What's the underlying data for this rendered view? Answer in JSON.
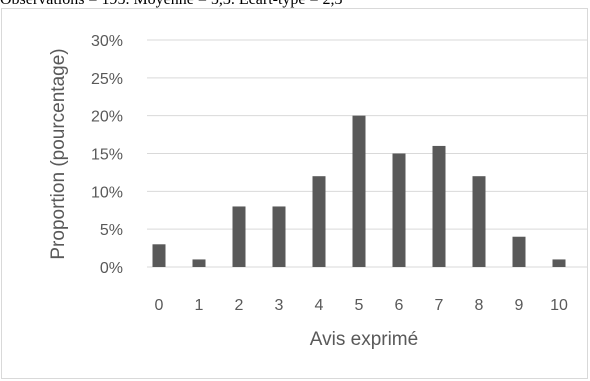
{
  "caption": "Observations = 195. Moyenne = 5,3. Ecart-type = 2,3",
  "colors": {
    "bar": "#595959",
    "grid": "#d9d9d9",
    "text": "#595959"
  },
  "chart_data": {
    "type": "bar",
    "categories": [
      "0",
      "1",
      "2",
      "3",
      "4",
      "5",
      "6",
      "7",
      "8",
      "9",
      "10"
    ],
    "values": [
      3,
      1,
      8,
      8,
      12,
      20,
      15,
      16,
      12,
      4,
      1
    ],
    "title": "",
    "xlabel": "Avis exprimé",
    "ylabel": "Proportion (pourcentage)",
    "ylim": [
      0,
      30
    ],
    "yticks": [
      "0%",
      "5%",
      "10%",
      "15%",
      "20%",
      "25%",
      "30%"
    ],
    "grid": true,
    "legend": "none"
  }
}
